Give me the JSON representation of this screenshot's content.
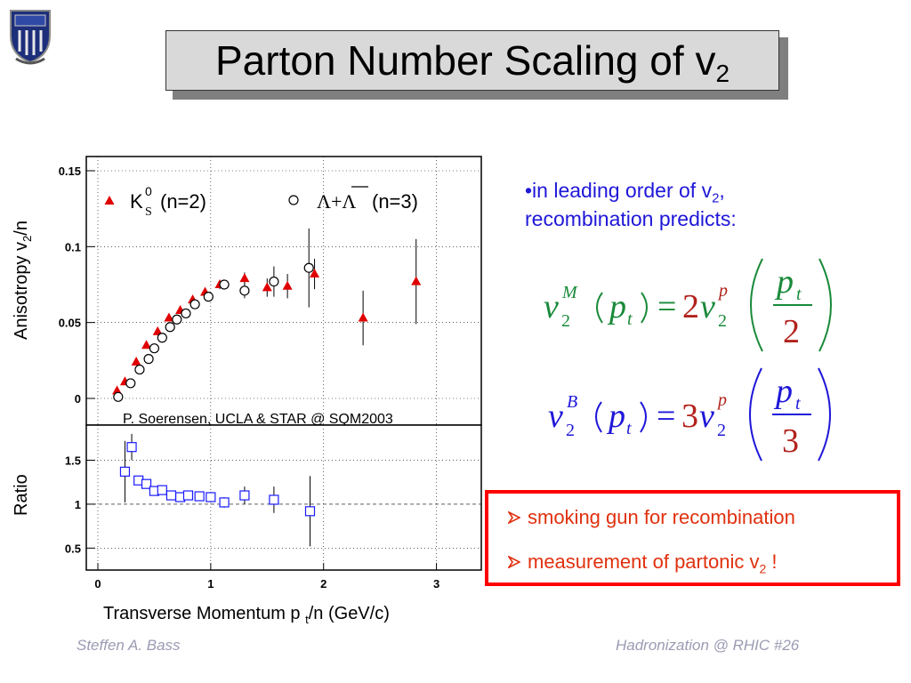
{
  "slide": {
    "title": "Parton Number Scaling of v",
    "title_sub": "2",
    "bullet_line1_a": "•in leading order of v",
    "bullet_line1_sub": "2",
    "bullet_line1_b": ",",
    "bullet_line2": "recombination predicts:",
    "box_item1": "smoking gun for recombination",
    "box_item2_a": "measurement of partonic v",
    "box_item2_sub": "2",
    "box_item2_b": " !",
    "footer_left": "Steffen A. Bass",
    "footer_right": "Hadronization @ RHIC  #26",
    "colors": {
      "blue_text": "#1f17d8",
      "red_text": "#e0300e",
      "box_border": "#ff0000",
      "footer": "#9b9bb3",
      "title_bg": "#d9d9d9"
    }
  },
  "chart_data": [
    {
      "type": "scatter",
      "panel": "top",
      "ylabel_a": "Anisotropy v",
      "ylabel_sub": "2",
      "ylabel_b": "/n",
      "ylim": [
        0,
        0.15
      ],
      "xlim": [
        0,
        3.5
      ],
      "yticks": [
        "0",
        "0.05",
        "0.1",
        "0.15"
      ],
      "yticks_values": [
        0,
        0.05,
        0.1,
        0.15
      ],
      "grid": true,
      "legend": [
        {
          "marker": "triangle",
          "label": "K",
          "label_sup": "0",
          "label_sub": "S",
          "label_suffix": " (n=2)"
        },
        {
          "marker": "circle",
          "label": "Λ+Λ",
          "label_suffix": " (n=3)"
        }
      ],
      "annotation": "P. Soerensen, UCLA & STAR @ SQM2003",
      "series": [
        {
          "name": "K",
          "marker": "triangle",
          "color": "#e00000",
          "x": [
            0.17,
            0.24,
            0.34,
            0.43,
            0.53,
            0.63,
            0.73,
            0.84,
            0.95,
            1.08,
            1.3,
            1.5,
            1.68,
            1.92,
            2.35,
            2.82
          ],
          "y": [
            0.005,
            0.011,
            0.024,
            0.035,
            0.044,
            0.053,
            0.058,
            0.065,
            0.07,
            0.075,
            0.079,
            0.073,
            0.074,
            0.082,
            0.053,
            0.077
          ],
          "err": [
            0.002,
            0.002,
            0.002,
            0.002,
            0.002,
            0.002,
            0.002,
            0.002,
            0.003,
            0.003,
            0.004,
            0.006,
            0.008,
            0.01,
            0.018,
            0.028
          ]
        },
        {
          "name": "Λ+Λ",
          "marker": "circle",
          "color": "#000000",
          "x": [
            0.18,
            0.29,
            0.37,
            0.45,
            0.5,
            0.57,
            0.64,
            0.7,
            0.78,
            0.86,
            0.98,
            1.12,
            1.3,
            1.56,
            1.87
          ],
          "y": [
            0.001,
            0.01,
            0.019,
            0.026,
            0.033,
            0.04,
            0.047,
            0.052,
            0.056,
            0.062,
            0.067,
            0.075,
            0.071,
            0.077,
            0.086
          ],
          "err": [
            0.001,
            0.001,
            0.002,
            0.002,
            0.002,
            0.002,
            0.002,
            0.002,
            0.002,
            0.002,
            0.003,
            0.003,
            0.005,
            0.01,
            0.026
          ]
        }
      ]
    },
    {
      "type": "scatter",
      "panel": "bottom",
      "ylabel": "Ratio",
      "xlabel_a": "Transverse Momentum p",
      "xlabel_sub": "t",
      "xlabel_b": "/n (GeV/c)",
      "ylim": [
        0.25,
        1.9
      ],
      "xlim": [
        0,
        3.5
      ],
      "yticks": [
        "0.5",
        "1",
        "1.5"
      ],
      "yticks_values": [
        0.5,
        1,
        1.5
      ],
      "xticks": [
        "0",
        "1",
        "2",
        "3"
      ],
      "xticks_values": [
        0,
        1,
        2,
        3
      ],
      "grid": true,
      "reference_line": 1,
      "series": [
        {
          "name": "",
          "marker": "open-square",
          "color": "#1a1aff",
          "x": [
            0.24,
            0.3,
            0.36,
            0.43,
            0.5,
            0.57,
            0.65,
            0.73,
            0.8,
            0.9,
            1.0,
            1.12,
            1.3,
            1.56,
            1.88
          ],
          "y": [
            1.37,
            1.65,
            1.27,
            1.23,
            1.15,
            1.16,
            1.1,
            1.08,
            1.1,
            1.09,
            1.08,
            1.02,
            1.1,
            1.05,
            0.92
          ],
          "err": [
            0.35,
            0.15,
            0.05,
            0.04,
            0.04,
            0.04,
            0.04,
            0.04,
            0.04,
            0.04,
            0.06,
            0.06,
            0.1,
            0.15,
            0.4
          ]
        }
      ]
    }
  ]
}
